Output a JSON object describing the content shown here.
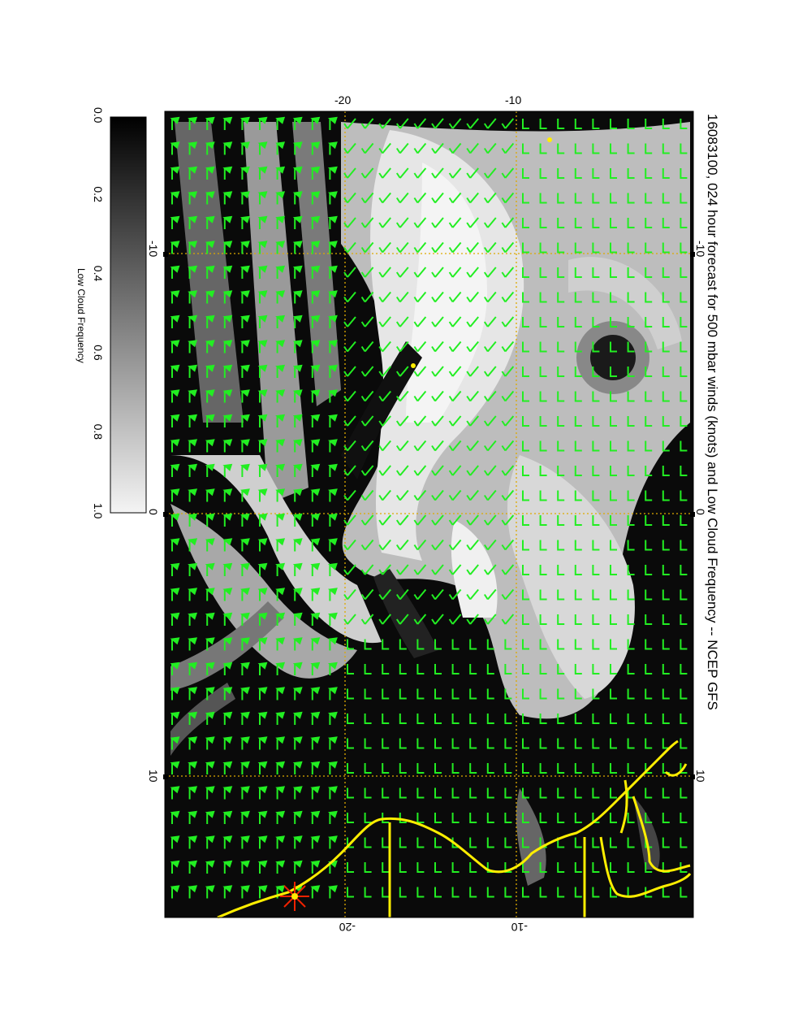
{
  "title": "16083100, 024 hour forecast for 500 mbar winds (knots) and Low Cloud Frequency -- NCEP GFS",
  "map": {
    "top_ticks": [
      "-20",
      "-10"
    ],
    "bottom_ticks": [
      "-20",
      "-10"
    ],
    "left_ticks": [
      "-10",
      "0",
      "10"
    ],
    "right_ticks": [
      "-10",
      "0",
      "10"
    ],
    "field_name": "Low Cloud Frequency",
    "wind_color": "#22ee22",
    "coast_color": "#ffee00",
    "gridline_color": "#ddaa00",
    "marker_color": "#ee2200"
  },
  "colorbar": {
    "label": "Low Cloud Frequency",
    "ticks": [
      "0.0",
      "0.2",
      "0.4",
      "0.6",
      "0.8",
      "1.0"
    ],
    "min": 0.0,
    "max": 1.0,
    "colormap": "greyscale, black to white"
  }
}
